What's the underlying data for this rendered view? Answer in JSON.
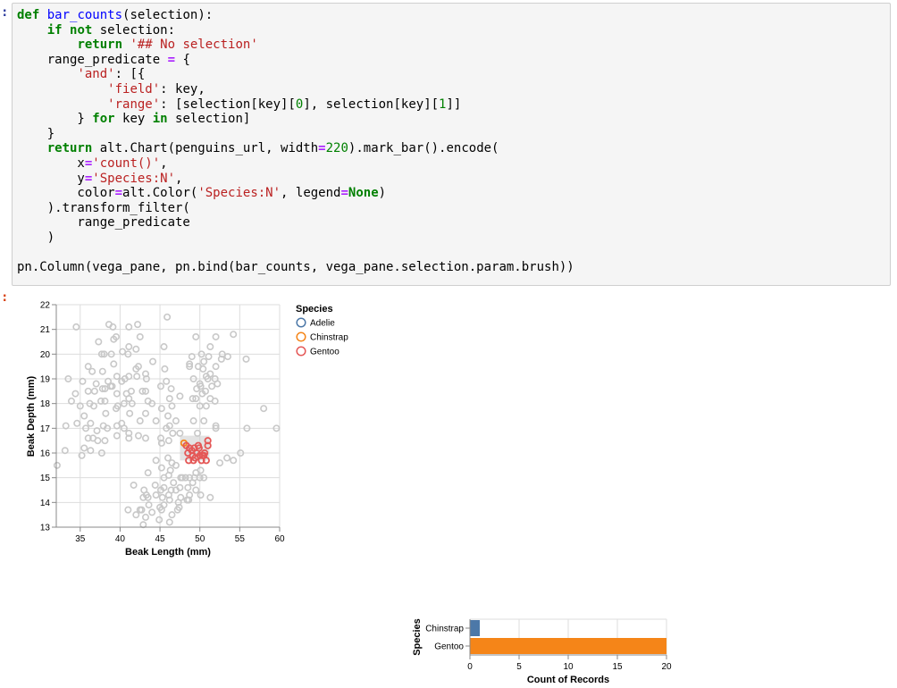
{
  "notebook": {
    "input_prompt": ":",
    "output_prompt": ":"
  },
  "code_lines": [
    [
      [
        "def",
        "kw"
      ],
      [
        " ",
        ""
      ],
      [
        "bar_counts",
        "fn"
      ],
      [
        "(selection):",
        ""
      ]
    ],
    [
      [
        "    ",
        ""
      ],
      [
        "if",
        "kw"
      ],
      [
        " ",
        ""
      ],
      [
        "not",
        "kw"
      ],
      [
        " selection:",
        ""
      ]
    ],
    [
      [
        "        ",
        ""
      ],
      [
        "return",
        "kw"
      ],
      [
        " ",
        ""
      ],
      [
        "'## No selection'",
        "str"
      ]
    ],
    [
      [
        "    range_predicate ",
        ""
      ],
      [
        "=",
        "op"
      ],
      [
        " {",
        ""
      ]
    ],
    [
      [
        "        ",
        ""
      ],
      [
        "'and'",
        "str"
      ],
      [
        ": [{",
        ""
      ]
    ],
    [
      [
        "            ",
        ""
      ],
      [
        "'field'",
        "str"
      ],
      [
        ": key,",
        ""
      ]
    ],
    [
      [
        "            ",
        ""
      ],
      [
        "'range'",
        "str"
      ],
      [
        ": [selection[key][",
        ""
      ],
      [
        "0",
        "num"
      ],
      [
        "], selection[key][",
        ""
      ],
      [
        "1",
        "num"
      ],
      [
        "]]",
        ""
      ]
    ],
    [
      [
        "        } ",
        ""
      ],
      [
        "for",
        "kw"
      ],
      [
        " key ",
        ""
      ],
      [
        "in",
        "kw"
      ],
      [
        " selection]",
        ""
      ]
    ],
    [
      [
        "    }",
        ""
      ]
    ],
    [
      [
        "    ",
        ""
      ],
      [
        "return",
        "kw"
      ],
      [
        " alt.Chart(penguins_url, width",
        ""
      ],
      [
        "=",
        "op"
      ],
      [
        "220",
        "num"
      ],
      [
        ").mark_bar().encode(",
        ""
      ]
    ],
    [
      [
        "        x",
        ""
      ],
      [
        "=",
        "op"
      ],
      [
        "'count()'",
        "str"
      ],
      [
        ",",
        ""
      ]
    ],
    [
      [
        "        y",
        ""
      ],
      [
        "=",
        "op"
      ],
      [
        "'Species:N'",
        "str"
      ],
      [
        ",",
        ""
      ]
    ],
    [
      [
        "        color",
        ""
      ],
      [
        "=",
        "op"
      ],
      [
        "alt.Color(",
        ""
      ],
      [
        "'Species:N'",
        "str"
      ],
      [
        ", legend",
        ""
      ],
      [
        "=",
        "op"
      ],
      [
        "None",
        "kw"
      ],
      [
        ")",
        ""
      ]
    ],
    [
      [
        "    ).transform_filter(",
        ""
      ]
    ],
    [
      [
        "        range_predicate",
        ""
      ]
    ],
    [
      [
        "    )",
        ""
      ]
    ],
    [
      [
        "",
        ""
      ]
    ],
    [
      [
        "pn.Column(vega_pane, pn.bind(bar_counts, vega_pane.selection.param.brush))",
        ""
      ]
    ]
  ],
  "colors": {
    "Adelie": "#4c78a8",
    "Chinstrap": "#f58518",
    "Gentoo": "#e45756",
    "unselected": "#c8c8c8",
    "brush": "#cccccc"
  },
  "chart_data": [
    {
      "type": "scatter",
      "xlabel": "Beak Length (mm)",
      "ylabel": "Beak Depth (mm)",
      "xlim": [
        32,
        60
      ],
      "ylim": [
        13,
        22
      ],
      "xticks": [
        "35",
        "40",
        "45",
        "50",
        "55",
        "60"
      ],
      "yticks": [
        "13",
        "14",
        "15",
        "16",
        "17",
        "18",
        "19",
        "20",
        "21",
        "22"
      ],
      "grid": true,
      "legend": {
        "title": "Species",
        "entries": [
          "Adelie",
          "Chinstrap",
          "Gentoo"
        ],
        "placement": "right"
      },
      "brush": {
        "x": [
          47.5,
          51.2
        ],
        "y": [
          15.7,
          16.7
        ]
      },
      "unselected_points": [
        [
          34.5,
          21.1
        ],
        [
          38.6,
          21.2
        ],
        [
          39.1,
          21.1
        ],
        [
          41.1,
          21.1
        ],
        [
          42.2,
          21.2
        ],
        [
          45.9,
          21.5
        ],
        [
          37.3,
          20.5
        ],
        [
          39.2,
          20.6
        ],
        [
          39.5,
          20.7
        ],
        [
          42.5,
          20.7
        ],
        [
          41.1,
          20.3
        ],
        [
          42,
          20.2
        ],
        [
          45.5,
          20.3
        ],
        [
          37.7,
          20
        ],
        [
          38,
          20
        ],
        [
          38.9,
          20
        ],
        [
          40.3,
          20.1
        ],
        [
          41,
          20
        ],
        [
          36,
          19.5
        ],
        [
          36.5,
          19.3
        ],
        [
          37.8,
          19.3
        ],
        [
          39.2,
          19.6
        ],
        [
          42,
          19.4
        ],
        [
          42.3,
          19.5
        ],
        [
          44.1,
          19.7
        ],
        [
          45.6,
          19.4
        ],
        [
          33.5,
          19
        ],
        [
          35.3,
          18.9
        ],
        [
          37,
          18.8
        ],
        [
          38.5,
          18.9
        ],
        [
          38.8,
          18.7
        ],
        [
          39.6,
          19.1
        ],
        [
          40.2,
          18.9
        ],
        [
          40.6,
          19
        ],
        [
          41.1,
          19.1
        ],
        [
          42.1,
          19.1
        ],
        [
          43.2,
          19.2
        ],
        [
          43.3,
          19
        ],
        [
          45.1,
          18.7
        ],
        [
          45.8,
          18.9
        ],
        [
          36,
          18.5
        ],
        [
          36.8,
          18.5
        ],
        [
          37.8,
          18.6
        ],
        [
          38.1,
          18.6
        ],
        [
          39,
          18.7
        ],
        [
          39.6,
          18.4
        ],
        [
          40.8,
          18.4
        ],
        [
          41.4,
          18.5
        ],
        [
          42.8,
          18.5
        ],
        [
          43.2,
          18.5
        ],
        [
          46.4,
          18.6
        ],
        [
          34.4,
          18.4
        ],
        [
          33.9,
          18.1
        ],
        [
          35,
          17.9
        ],
        [
          36.2,
          18
        ],
        [
          36.7,
          17.9
        ],
        [
          37.6,
          18.1
        ],
        [
          38.1,
          18.1
        ],
        [
          39.7,
          17.9
        ],
        [
          40.5,
          18
        ],
        [
          41.1,
          18.2
        ],
        [
          41.5,
          18
        ],
        [
          43.5,
          18.1
        ],
        [
          44,
          18
        ],
        [
          45.2,
          17.8
        ],
        [
          46.2,
          18.2
        ],
        [
          46.5,
          17.9
        ],
        [
          47.5,
          18.3
        ],
        [
          35.5,
          17.5
        ],
        [
          38.2,
          17.6
        ],
        [
          39.5,
          17.8
        ],
        [
          40.2,
          17.2
        ],
        [
          41.2,
          17.6
        ],
        [
          42.5,
          17.3
        ],
        [
          43.2,
          17.6
        ],
        [
          44.5,
          17.3
        ],
        [
          46,
          17.5
        ],
        [
          47,
          17.3
        ],
        [
          33.2,
          17.1
        ],
        [
          34.6,
          17.2
        ],
        [
          35.7,
          17
        ],
        [
          36.3,
          17.2
        ],
        [
          37.1,
          16.9
        ],
        [
          37.9,
          17.1
        ],
        [
          38.4,
          17
        ],
        [
          39.6,
          17.1
        ],
        [
          40.5,
          17
        ],
        [
          41.1,
          16.8
        ],
        [
          42.3,
          16.7
        ],
        [
          43.2,
          16.6
        ],
        [
          45.1,
          16.6
        ],
        [
          45.8,
          17
        ],
        [
          46.2,
          17.1
        ],
        [
          36,
          16.6
        ],
        [
          36.6,
          16.6
        ],
        [
          37.2,
          16.5
        ],
        [
          38.1,
          16.5
        ],
        [
          39.6,
          16.7
        ],
        [
          41.1,
          16.6
        ],
        [
          33.1,
          16.1
        ],
        [
          35.5,
          16.2
        ],
        [
          36.3,
          16.1
        ],
        [
          37.7,
          16
        ],
        [
          35.2,
          15.9
        ],
        [
          32.1,
          15.5
        ],
        [
          49.5,
          20.7
        ],
        [
          52,
          20.7
        ],
        [
          54.2,
          20.8
        ],
        [
          51.3,
          20.3
        ],
        [
          49,
          19.9
        ],
        [
          50.2,
          20
        ],
        [
          51.1,
          19.9
        ],
        [
          52.8,
          20
        ],
        [
          53.5,
          19.9
        ],
        [
          55.8,
          19.8
        ],
        [
          52.7,
          19.8
        ],
        [
          50.5,
          19.7
        ],
        [
          48.7,
          19.6
        ],
        [
          48.7,
          19.5
        ],
        [
          49.8,
          19.5
        ],
        [
          50.4,
          19.4
        ],
        [
          52,
          19.5
        ],
        [
          50.8,
          19.1
        ],
        [
          51.3,
          19.2
        ],
        [
          49.2,
          19
        ],
        [
          51,
          19
        ],
        [
          51.9,
          19
        ],
        [
          52.2,
          18.8
        ],
        [
          50,
          18.8
        ],
        [
          50.1,
          18.7
        ],
        [
          51.5,
          18.7
        ],
        [
          49.6,
          18.6
        ],
        [
          50.3,
          18.4
        ],
        [
          50.7,
          18.5
        ],
        [
          49.1,
          18.2
        ],
        [
          49.5,
          18.2
        ],
        [
          51.3,
          18.2
        ],
        [
          51.9,
          18.1
        ],
        [
          50,
          17.9
        ],
        [
          50.8,
          17.9
        ],
        [
          58,
          17.8
        ],
        [
          49.2,
          17.3
        ],
        [
          50.5,
          17.3
        ],
        [
          52,
          17.1
        ],
        [
          52,
          17
        ],
        [
          55.9,
          17
        ],
        [
          59.6,
          17
        ],
        [
          49.7,
          16.8
        ],
        [
          47.5,
          16.8
        ],
        [
          46.1,
          16.5
        ],
        [
          46.6,
          16.8
        ],
        [
          45.2,
          16.4
        ],
        [
          46,
          15.8
        ],
        [
          44.5,
          15.7
        ],
        [
          45.2,
          15.4
        ],
        [
          43.5,
          15.2
        ],
        [
          46.5,
          15.6
        ],
        [
          47,
          15.5
        ],
        [
          46.3,
          15.3
        ],
        [
          47.6,
          15
        ],
        [
          48.2,
          15
        ],
        [
          48.7,
          15
        ],
        [
          49.3,
          15
        ],
        [
          50,
          15
        ],
        [
          50.5,
          15
        ],
        [
          47.8,
          15
        ],
        [
          46.1,
          15.1
        ],
        [
          45.5,
          15
        ],
        [
          46.7,
          14.8
        ],
        [
          49.1,
          14.8
        ],
        [
          49.5,
          15.2
        ],
        [
          50.1,
          15.3
        ],
        [
          52.5,
          15.6
        ],
        [
          53.4,
          15.8
        ],
        [
          54.2,
          15.7
        ],
        [
          55.1,
          16
        ],
        [
          41.7,
          14.7
        ],
        [
          44.4,
          14.7
        ],
        [
          45.1,
          14.5
        ],
        [
          45.5,
          14.6
        ],
        [
          46.4,
          14.5
        ],
        [
          46.1,
          14.3
        ],
        [
          47,
          14.5
        ],
        [
          47.5,
          14.6
        ],
        [
          48.5,
          14.6
        ],
        [
          48.7,
          14.3
        ],
        [
          49.5,
          14.5
        ],
        [
          50.1,
          14.3
        ],
        [
          51.3,
          14.2
        ],
        [
          43,
          14.5
        ],
        [
          43.3,
          14.3
        ],
        [
          42.9,
          14.2
        ],
        [
          43.5,
          14.2
        ],
        [
          44.5,
          14.3
        ],
        [
          45.3,
          14.2
        ],
        [
          46.2,
          14.1
        ],
        [
          47.3,
          14
        ],
        [
          48.4,
          14.1
        ],
        [
          48.6,
          14.1
        ],
        [
          45,
          13.8
        ],
        [
          45.2,
          13.7
        ],
        [
          45.5,
          13.9
        ],
        [
          44,
          13.6
        ],
        [
          43.6,
          13.9
        ],
        [
          43.2,
          13.4
        ],
        [
          42.5,
          13.7
        ],
        [
          42.7,
          13.7
        ],
        [
          41,
          13.7
        ],
        [
          42,
          13.5
        ],
        [
          44.9,
          13.3
        ],
        [
          46.2,
          13.2
        ],
        [
          46.5,
          13.5
        ],
        [
          47.2,
          13.7
        ],
        [
          42.9,
          13.1
        ],
        [
          47.4,
          13.8
        ],
        [
          47.6,
          14.2
        ]
      ],
      "selected_points": [
        {
          "species": "Chinstrap",
          "x": 48,
          "y": 16.4
        },
        {
          "species": "Gentoo",
          "x": 48.3,
          "y": 16.3
        },
        {
          "species": "Gentoo",
          "x": 48.7,
          "y": 16.2
        },
        {
          "species": "Gentoo",
          "x": 49,
          "y": 16.1
        },
        {
          "species": "Gentoo",
          "x": 49.3,
          "y": 16.2
        },
        {
          "species": "Gentoo",
          "x": 49.8,
          "y": 16.3
        },
        {
          "species": "Gentoo",
          "x": 48.5,
          "y": 16
        },
        {
          "species": "Gentoo",
          "x": 49.1,
          "y": 15.9
        },
        {
          "species": "Gentoo",
          "x": 49.6,
          "y": 16
        },
        {
          "species": "Gentoo",
          "x": 50,
          "y": 15.9
        },
        {
          "species": "Gentoo",
          "x": 50.3,
          "y": 15.9
        },
        {
          "species": "Gentoo",
          "x": 50.5,
          "y": 15.9
        },
        {
          "species": "Gentoo",
          "x": 48.6,
          "y": 15.7
        },
        {
          "species": "Gentoo",
          "x": 49.2,
          "y": 15.7
        },
        {
          "species": "Gentoo",
          "x": 49.4,
          "y": 15.8
        },
        {
          "species": "Gentoo",
          "x": 50.2,
          "y": 15.7
        },
        {
          "species": "Gentoo",
          "x": 50.8,
          "y": 15.7
        },
        {
          "species": "Gentoo",
          "x": 51,
          "y": 16.5
        },
        {
          "species": "Gentoo",
          "x": 51,
          "y": 16.3
        },
        {
          "species": "Gentoo",
          "x": 49.9,
          "y": 16.2
        },
        {
          "species": "Gentoo",
          "x": 50.6,
          "y": 16
        }
      ]
    },
    {
      "type": "bar",
      "orientation": "horizontal",
      "categories": [
        "Chinstrap",
        "Gentoo"
      ],
      "values": [
        1,
        20
      ],
      "xlabel": "Count of Records",
      "ylabel": "Species",
      "xlim": [
        0,
        20
      ],
      "xticks": [
        "0",
        "5",
        "10",
        "15",
        "20"
      ],
      "grid": true
    }
  ]
}
